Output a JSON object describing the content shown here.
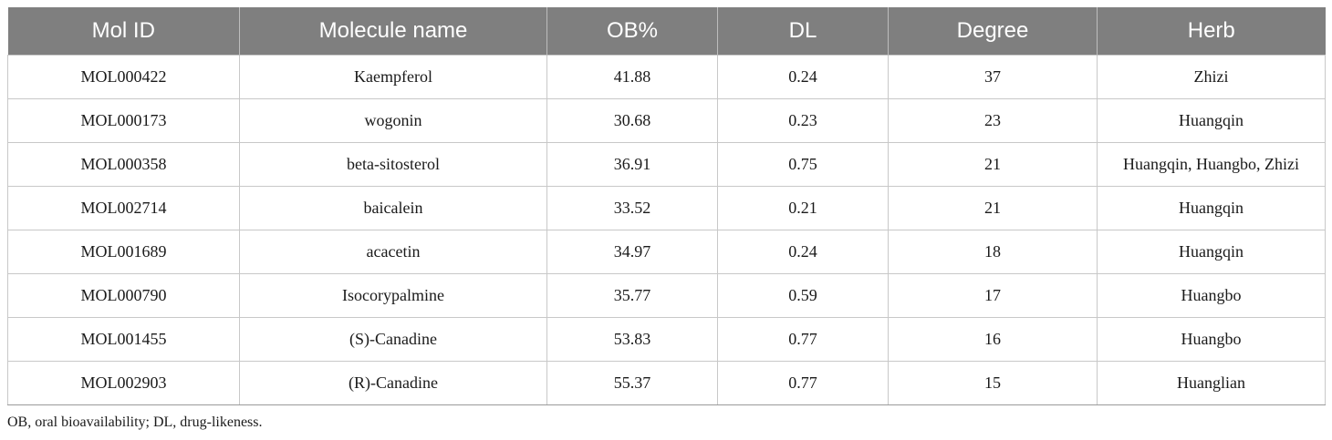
{
  "table": {
    "headers": [
      "Mol ID",
      "Molecule name",
      "OB%",
      "DL",
      "Degree",
      "Herb"
    ],
    "rows": [
      [
        "MOL000422",
        "Kaempferol",
        "41.88",
        "0.24",
        "37",
        "Zhizi"
      ],
      [
        "MOL000173",
        "wogonin",
        "30.68",
        "0.23",
        "23",
        "Huangqin"
      ],
      [
        "MOL000358",
        "beta-sitosterol",
        "36.91",
        "0.75",
        "21",
        "Huangqin, Huangbo, Zhizi"
      ],
      [
        "MOL002714",
        "baicalein",
        "33.52",
        "0.21",
        "21",
        "Huangqin"
      ],
      [
        "MOL001689",
        "acacetin",
        "34.97",
        "0.24",
        "18",
        "Huangqin"
      ],
      [
        "MOL000790",
        "Isocorypalmine",
        "35.77",
        "0.59",
        "17",
        "Huangbo"
      ],
      [
        "MOL001455",
        "(S)-Canadine",
        "53.83",
        "0.77",
        "16",
        "Huangbo"
      ],
      [
        "MOL002903",
        "(R)-Canadine",
        "55.37",
        "0.77",
        "15",
        "Huanglian"
      ]
    ]
  },
  "footnote": "OB, oral bioavailability; DL, drug-likeness.",
  "colors": {
    "header_bg": "#7f7f7f",
    "header_text": "#ffffff",
    "grid": "#c8c8c8"
  }
}
